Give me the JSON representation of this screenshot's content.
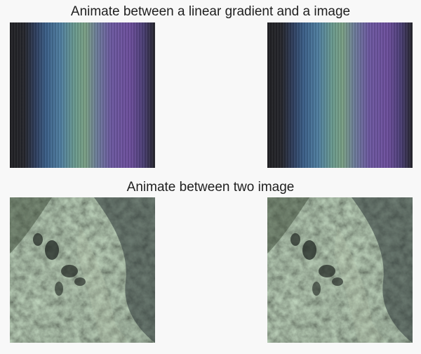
{
  "sections": [
    {
      "title": "Animate between a linear gradient and a image"
    },
    {
      "title": "Animate between two image"
    }
  ],
  "gradient_colors": [
    "#202024",
    "#2f3f60",
    "#3a5f88",
    "#4f7ea0",
    "#6a9a8e",
    "#7a9f84",
    "#6c7c9a",
    "#6c58a0",
    "#6c4e9c",
    "#4a3e74",
    "#24252b"
  ],
  "background_color": "#f8f8f8"
}
